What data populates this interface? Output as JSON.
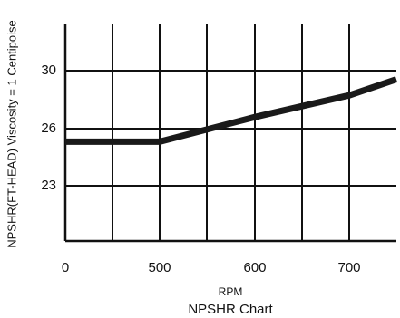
{
  "chart_data": {
    "type": "line",
    "title": "NPSHR Chart",
    "xlabel": "RPM",
    "ylabel": "NPSHR(FT-HEAD)  Viscosity = 1 Centipoise",
    "x_tick_labels": [
      "0",
      "500",
      "600",
      "700"
    ],
    "y_tick_labels": [
      "30",
      "26",
      "23"
    ],
    "grid": true,
    "series": [
      {
        "points": [
          {
            "x": "0",
            "y": 25.1
          },
          {
            "x": "500",
            "y": 25.1
          },
          {
            "x": "600",
            "y": 26.8
          },
          {
            "x": "700",
            "y": 28.3
          },
          {
            "x": "760",
            "y": 29.4
          }
        ]
      }
    ],
    "colors": {
      "line": "#1a1a1a",
      "grid": "#111111",
      "frame": "#111111",
      "background": "#ffffff"
    }
  }
}
